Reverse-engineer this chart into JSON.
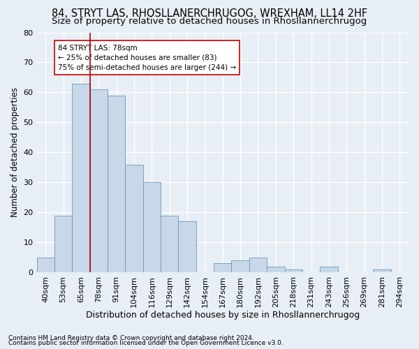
{
  "title1": "84, STRYT LAS, RHOSLLANERCHRUGOG, WREXHAM, LL14 2HF",
  "title2": "Size of property relative to detached houses in Rhosllannerchrugog",
  "xlabel": "Distribution of detached houses by size in Rhosllannerchrugog",
  "ylabel": "Number of detached properties",
  "categories": [
    "40sqm",
    "53sqm",
    "65sqm",
    "78sqm",
    "91sqm",
    "104sqm",
    "116sqm",
    "129sqm",
    "142sqm",
    "154sqm",
    "167sqm",
    "180sqm",
    "192sqm",
    "205sqm",
    "218sqm",
    "231sqm",
    "243sqm",
    "256sqm",
    "269sqm",
    "281sqm",
    "294sqm"
  ],
  "values": [
    5,
    19,
    63,
    61,
    59,
    36,
    30,
    19,
    17,
    0,
    3,
    4,
    5,
    2,
    1,
    0,
    2,
    0,
    0,
    1,
    0
  ],
  "bar_color": "#c8d8e8",
  "bar_edge_color": "#6699bb",
  "vline_index": 3,
  "vline_color": "#aa0000",
  "annotation_text": "84 STRYT LAS: 78sqm\n← 25% of detached houses are smaller (83)\n75% of semi-detached houses are larger (244) →",
  "annotation_box_color": "#ffffff",
  "annotation_box_edge": "#cc0000",
  "ylim": [
    0,
    80
  ],
  "yticks": [
    0,
    10,
    20,
    30,
    40,
    50,
    60,
    70,
    80
  ],
  "footer1": "Contains HM Land Registry data © Crown copyright and database right 2024.",
  "footer2": "Contains public sector information licensed under the Open Government Licence v3.0.",
  "bg_color": "#e8eef5",
  "grid_color": "#ffffff",
  "title1_fontsize": 10.5,
  "title2_fontsize": 9.5,
  "xlabel_fontsize": 9,
  "ylabel_fontsize": 8.5,
  "tick_fontsize": 8,
  "annot_fontsize": 7.5,
  "footer_fontsize": 6.5
}
